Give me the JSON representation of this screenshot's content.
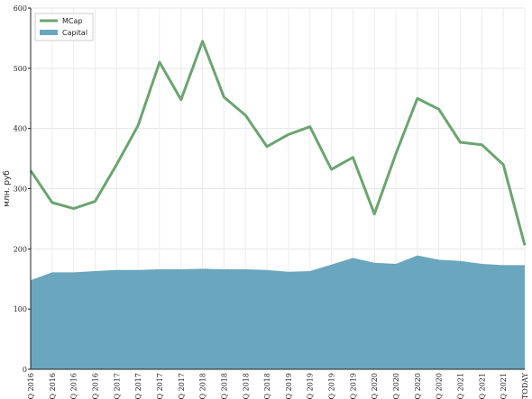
{
  "chart_data": {
    "type": "line",
    "ylabel": "млн. руб",
    "ylim": [
      0,
      600
    ],
    "yticks": [
      0,
      100,
      200,
      300,
      400,
      500,
      600
    ],
    "grid": true,
    "legend_position": "top-left",
    "categories": [
      "1Q 2016",
      "2Q 2016",
      "3Q 2016",
      "4Q 2016",
      "1Q 2017",
      "2Q 2017",
      "3Q 2017",
      "4Q 2017",
      "1Q 2018",
      "2Q 2018",
      "3Q 2018",
      "4Q 2018",
      "1Q 2019",
      "2Q 2019",
      "3Q 2019",
      "4Q 2019",
      "1Q 2020",
      "2Q 2020",
      "3Q 2020",
      "4Q 2020",
      "1Q 2021",
      "2Q 2021",
      "3Q 2021",
      "TODAY"
    ],
    "series": [
      {
        "name": "MCap",
        "style": "line",
        "color": "#6aa56f",
        "values": [
          330,
          277,
          267,
          279,
          340,
          405,
          510,
          448,
          545,
          452,
          422,
          370,
          390,
          403,
          332,
          352,
          258,
          358,
          450,
          432,
          377,
          373,
          340,
          206
        ]
      },
      {
        "name": "Capital",
        "style": "area",
        "color": "#6aa6bd",
        "values": [
          148,
          161,
          161,
          163,
          165,
          165,
          166,
          166,
          167,
          166,
          166,
          165,
          162,
          163,
          174,
          185,
          177,
          175,
          189,
          182,
          180,
          175,
          173,
          173
        ]
      }
    ]
  }
}
